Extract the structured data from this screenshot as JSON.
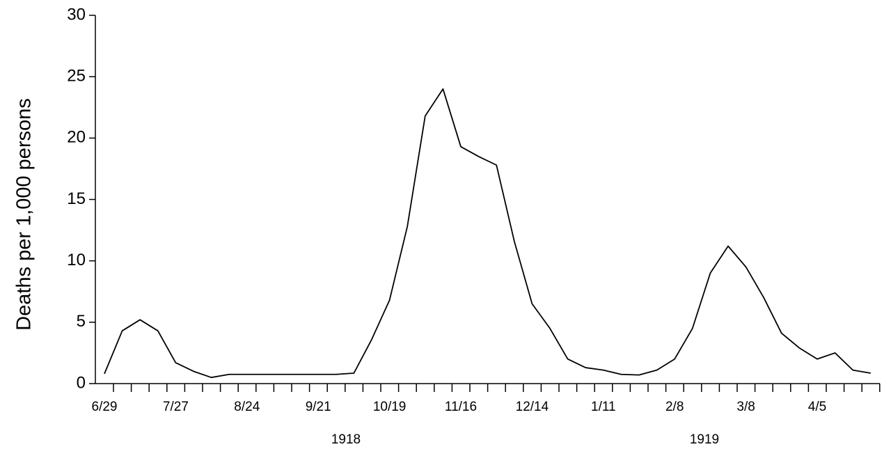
{
  "chart_data": {
    "type": "line",
    "y_label": "Deaths per 1,000 persons",
    "categories": [
      "6/29",
      null,
      null,
      null,
      "7/27",
      null,
      null,
      null,
      "8/24",
      null,
      null,
      null,
      "9/21",
      null,
      null,
      null,
      "10/19",
      null,
      null,
      null,
      "11/16",
      null,
      null,
      null,
      "12/14",
      null,
      null,
      null,
      "1/11",
      null,
      null,
      null,
      "2/8",
      null,
      null,
      null,
      "3/8",
      null,
      null,
      null,
      "4/5",
      null,
      null,
      null
    ],
    "values": [
      0.8,
      4.3,
      5.2,
      4.3,
      1.7,
      1.0,
      0.5,
      0.75,
      0.75,
      0.75,
      0.75,
      0.75,
      0.75,
      0.75,
      0.85,
      3.6,
      6.8,
      12.8,
      21.8,
      24.0,
      19.3,
      18.5,
      17.8,
      11.6,
      6.5,
      4.5,
      2.0,
      1.3,
      1.1,
      0.75,
      0.7,
      1.1,
      2.0,
      4.5,
      9.0,
      11.2,
      9.5,
      7.0,
      4.1,
      2.9,
      2.0,
      2.5,
      1.1,
      0.85
    ],
    "color": "#000000",
    "ylim": [
      0,
      30
    ],
    "yticks": [
      0,
      5,
      10,
      15,
      20,
      25,
      30
    ],
    "annotations": [
      "1918",
      "1919"
    ]
  }
}
